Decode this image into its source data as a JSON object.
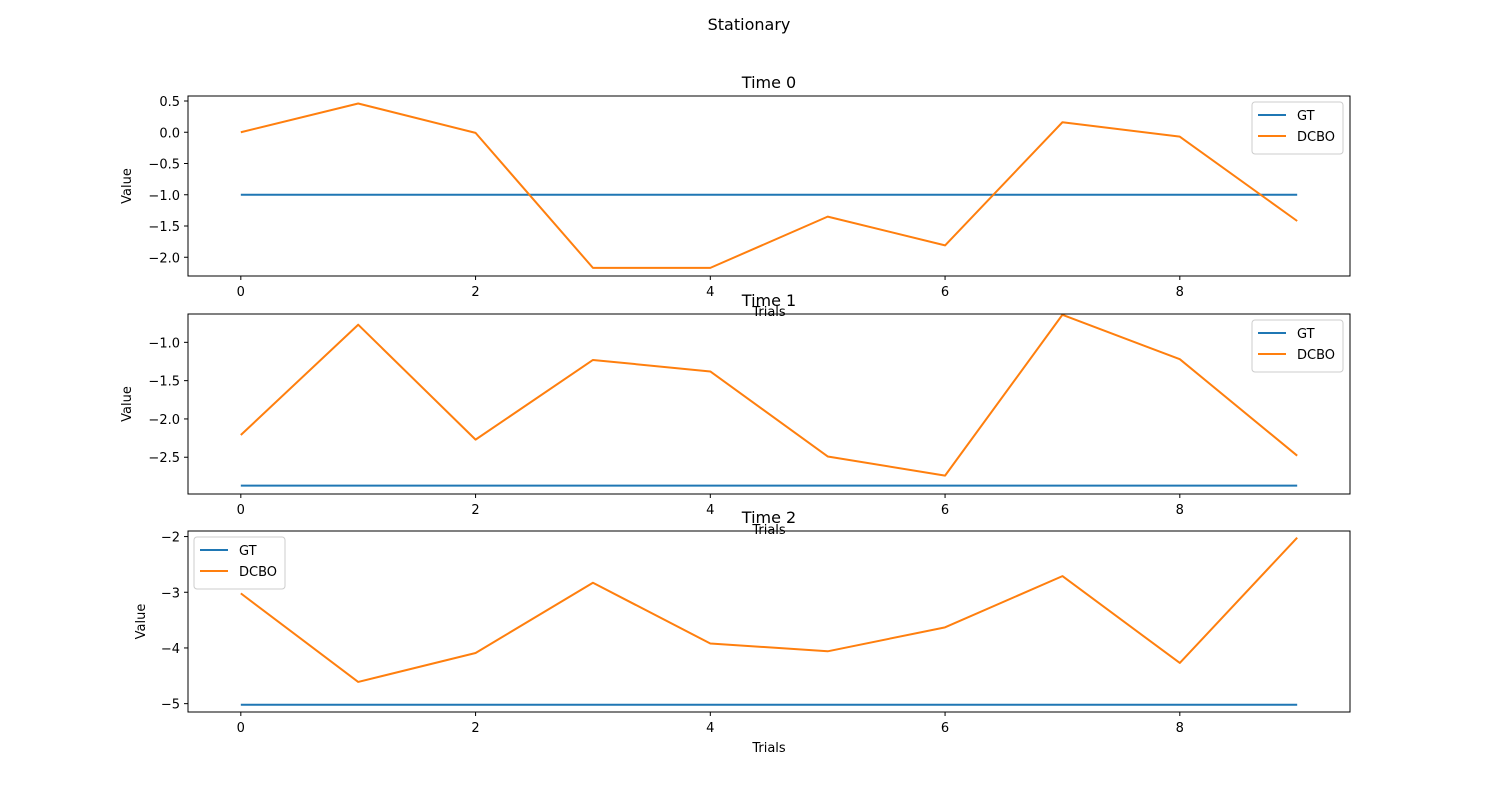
{
  "figure": {
    "title": "Stationary"
  },
  "colors": {
    "GT": "#1f77b4",
    "DCBO": "#ff7f0e",
    "legend_border": "#cccccc"
  },
  "chart_data": [
    {
      "type": "line",
      "title": "Time 0",
      "xlabel": "Trials",
      "ylabel": "Value",
      "x": [
        0,
        1,
        2,
        3,
        4,
        5,
        6,
        7,
        8,
        9
      ],
      "xlim": [
        -0.45,
        9.45
      ],
      "ylim": [
        -2.3,
        0.58
      ],
      "xticks": [
        0,
        2,
        4,
        6,
        8
      ],
      "xtick_labels": [
        "0",
        "2",
        "4",
        "6",
        "8"
      ],
      "yticks": [
        0.5,
        0.0,
        -0.5,
        -1.0,
        -1.5,
        -2.0
      ],
      "ytick_labels": [
        "0.5",
        "0.0",
        "−0.5",
        "−1.0",
        "−1.5",
        "−2.0"
      ],
      "grid": false,
      "legend_position": "top-right",
      "series": [
        {
          "name": "GT",
          "color": "#1f77b4",
          "values": [
            -1.0,
            -1.0,
            -1.0,
            -1.0,
            -1.0,
            -1.0,
            -1.0,
            -1.0,
            -1.0,
            -1.0
          ]
        },
        {
          "name": "DCBO",
          "color": "#ff7f0e",
          "values": [
            0.0,
            0.46,
            -0.01,
            -2.17,
            -2.17,
            -1.35,
            -1.81,
            0.16,
            -0.07,
            -1.42
          ]
        }
      ]
    },
    {
      "type": "line",
      "title": "Time 1",
      "xlabel": "Trials",
      "ylabel": "Value",
      "x": [
        0,
        1,
        2,
        3,
        4,
        5,
        6,
        7,
        8,
        9
      ],
      "xlim": [
        -0.45,
        9.45
      ],
      "ylim": [
        -2.98,
        -0.63
      ],
      "xticks": [
        0,
        2,
        4,
        6,
        8
      ],
      "xtick_labels": [
        "0",
        "2",
        "4",
        "6",
        "8"
      ],
      "yticks": [
        -1.0,
        -1.5,
        -2.0,
        -2.5
      ],
      "ytick_labels": [
        "−1.0",
        "−1.5",
        "−2.0",
        "−2.5"
      ],
      "grid": false,
      "legend_position": "top-right",
      "series": [
        {
          "name": "GT",
          "color": "#1f77b4",
          "values": [
            -2.87,
            -2.87,
            -2.87,
            -2.87,
            -2.87,
            -2.87,
            -2.87,
            -2.87,
            -2.87,
            -2.87
          ]
        },
        {
          "name": "DCBO",
          "color": "#ff7f0e",
          "values": [
            -2.21,
            -0.77,
            -2.27,
            -1.23,
            -1.38,
            -2.49,
            -2.74,
            -0.64,
            -1.22,
            -2.48
          ]
        }
      ]
    },
    {
      "type": "line",
      "title": "Time 2",
      "xlabel": "Trials",
      "ylabel": "Value",
      "x": [
        0,
        1,
        2,
        3,
        4,
        5,
        6,
        7,
        8,
        9
      ],
      "xlim": [
        -0.45,
        9.45
      ],
      "ylim": [
        -5.15,
        -1.9
      ],
      "xticks": [
        0,
        2,
        4,
        6,
        8
      ],
      "xtick_labels": [
        "0",
        "2",
        "4",
        "6",
        "8"
      ],
      "yticks": [
        -2,
        -3,
        -4,
        -5
      ],
      "ytick_labels": [
        "−2",
        "−3",
        "−4",
        "−5"
      ],
      "grid": false,
      "legend_position": "top-left",
      "series": [
        {
          "name": "GT",
          "color": "#1f77b4",
          "values": [
            -5.02,
            -5.02,
            -5.02,
            -5.02,
            -5.02,
            -5.02,
            -5.02,
            -5.02,
            -5.02,
            -5.02
          ]
        },
        {
          "name": "DCBO",
          "color": "#ff7f0e",
          "values": [
            -3.02,
            -4.61,
            -4.09,
            -2.83,
            -3.92,
            -4.06,
            -3.63,
            -2.71,
            -4.27,
            -2.02
          ]
        }
      ]
    }
  ]
}
